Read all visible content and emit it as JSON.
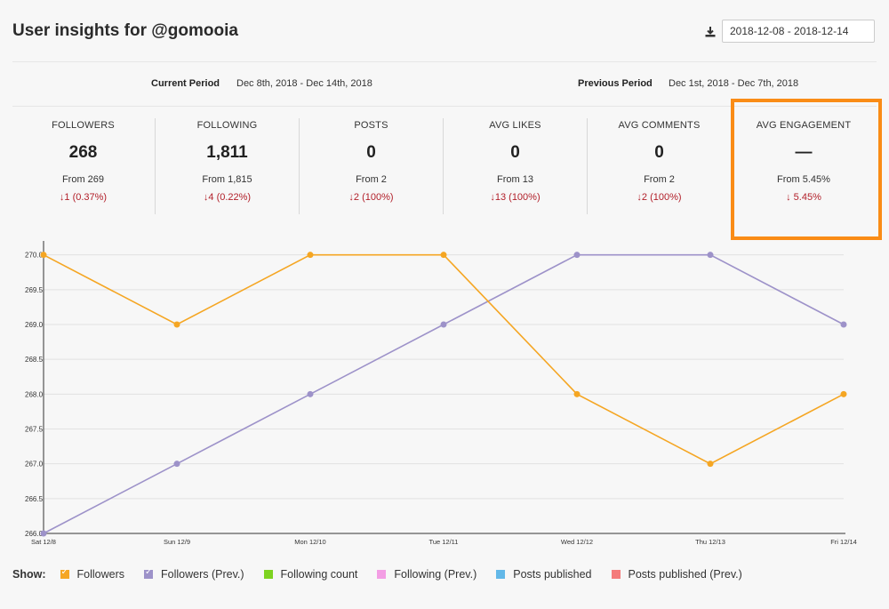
{
  "header": {
    "title": "User insights for @gomooia",
    "date_range": "2018-12-08 - 2018-12-14"
  },
  "periods": {
    "current_label": "Current Period",
    "current_value": "Dec 8th, 2018 - Dec 14th, 2018",
    "previous_label": "Previous Period",
    "previous_value": "Dec 1st, 2018 - Dec 7th, 2018"
  },
  "stats": [
    {
      "label": "FOLLOWERS",
      "value": "268",
      "from": "From 269",
      "change": "↓1 (0.37%)"
    },
    {
      "label": "FOLLOWING",
      "value": "1,811",
      "from": "From 1,815",
      "change": "↓4 (0.22%)"
    },
    {
      "label": "POSTS",
      "value": "0",
      "from": "From 2",
      "change": "↓2 (100%)"
    },
    {
      "label": "AVG LIKES",
      "value": "0",
      "from": "From 13",
      "change": "↓13 (100%)"
    },
    {
      "label": "AVG COMMENTS",
      "value": "0",
      "from": "From 2",
      "change": "↓2 (100%)"
    },
    {
      "label": "AVG ENGAGEMENT",
      "value": "—",
      "from": "From 5.45%",
      "change": "↓ 5.45%"
    }
  ],
  "colors": {
    "followers": "#f5a623",
    "followers_prev": "#9d92c9",
    "following": "#7ed321",
    "following_prev": "#f39ee4",
    "posts": "#63b8e8",
    "posts_prev": "#f47c7c",
    "highlight": "#fa8c16",
    "negative": "#b2202a"
  },
  "chart_data": {
    "type": "line",
    "categories": [
      "Sat 12/8",
      "Sun 12/9",
      "Mon 12/10",
      "Tue 12/11",
      "Wed 12/12",
      "Thu 12/13",
      "Fri 12/14"
    ],
    "series": [
      {
        "name": "Followers",
        "values": [
          270,
          269,
          270,
          270,
          268,
          267,
          268
        ]
      },
      {
        "name": "Followers (Prev.)",
        "values": [
          266,
          267,
          268,
          269,
          270,
          270,
          269
        ]
      }
    ],
    "yticks": [
      "266.0",
      "266.5",
      "267.0",
      "267.5",
      "268.0",
      "268.5",
      "269.0",
      "269.5",
      "270.0"
    ],
    "ylim": [
      266,
      270.2
    ],
    "grid": true
  },
  "legend": {
    "title": "Show:",
    "items": [
      {
        "label": "Followers",
        "color": "#f5a623",
        "checked": true
      },
      {
        "label": "Followers (Prev.)",
        "color": "#9d92c9",
        "checked": true
      },
      {
        "label": "Following count",
        "color": "#7ed321",
        "checked": false
      },
      {
        "label": "Following (Prev.)",
        "color": "#f39ee4",
        "checked": false
      },
      {
        "label": "Posts published",
        "color": "#63b8e8",
        "checked": false
      },
      {
        "label": "Posts published (Prev.)",
        "color": "#f47c7c",
        "checked": false
      }
    ]
  }
}
